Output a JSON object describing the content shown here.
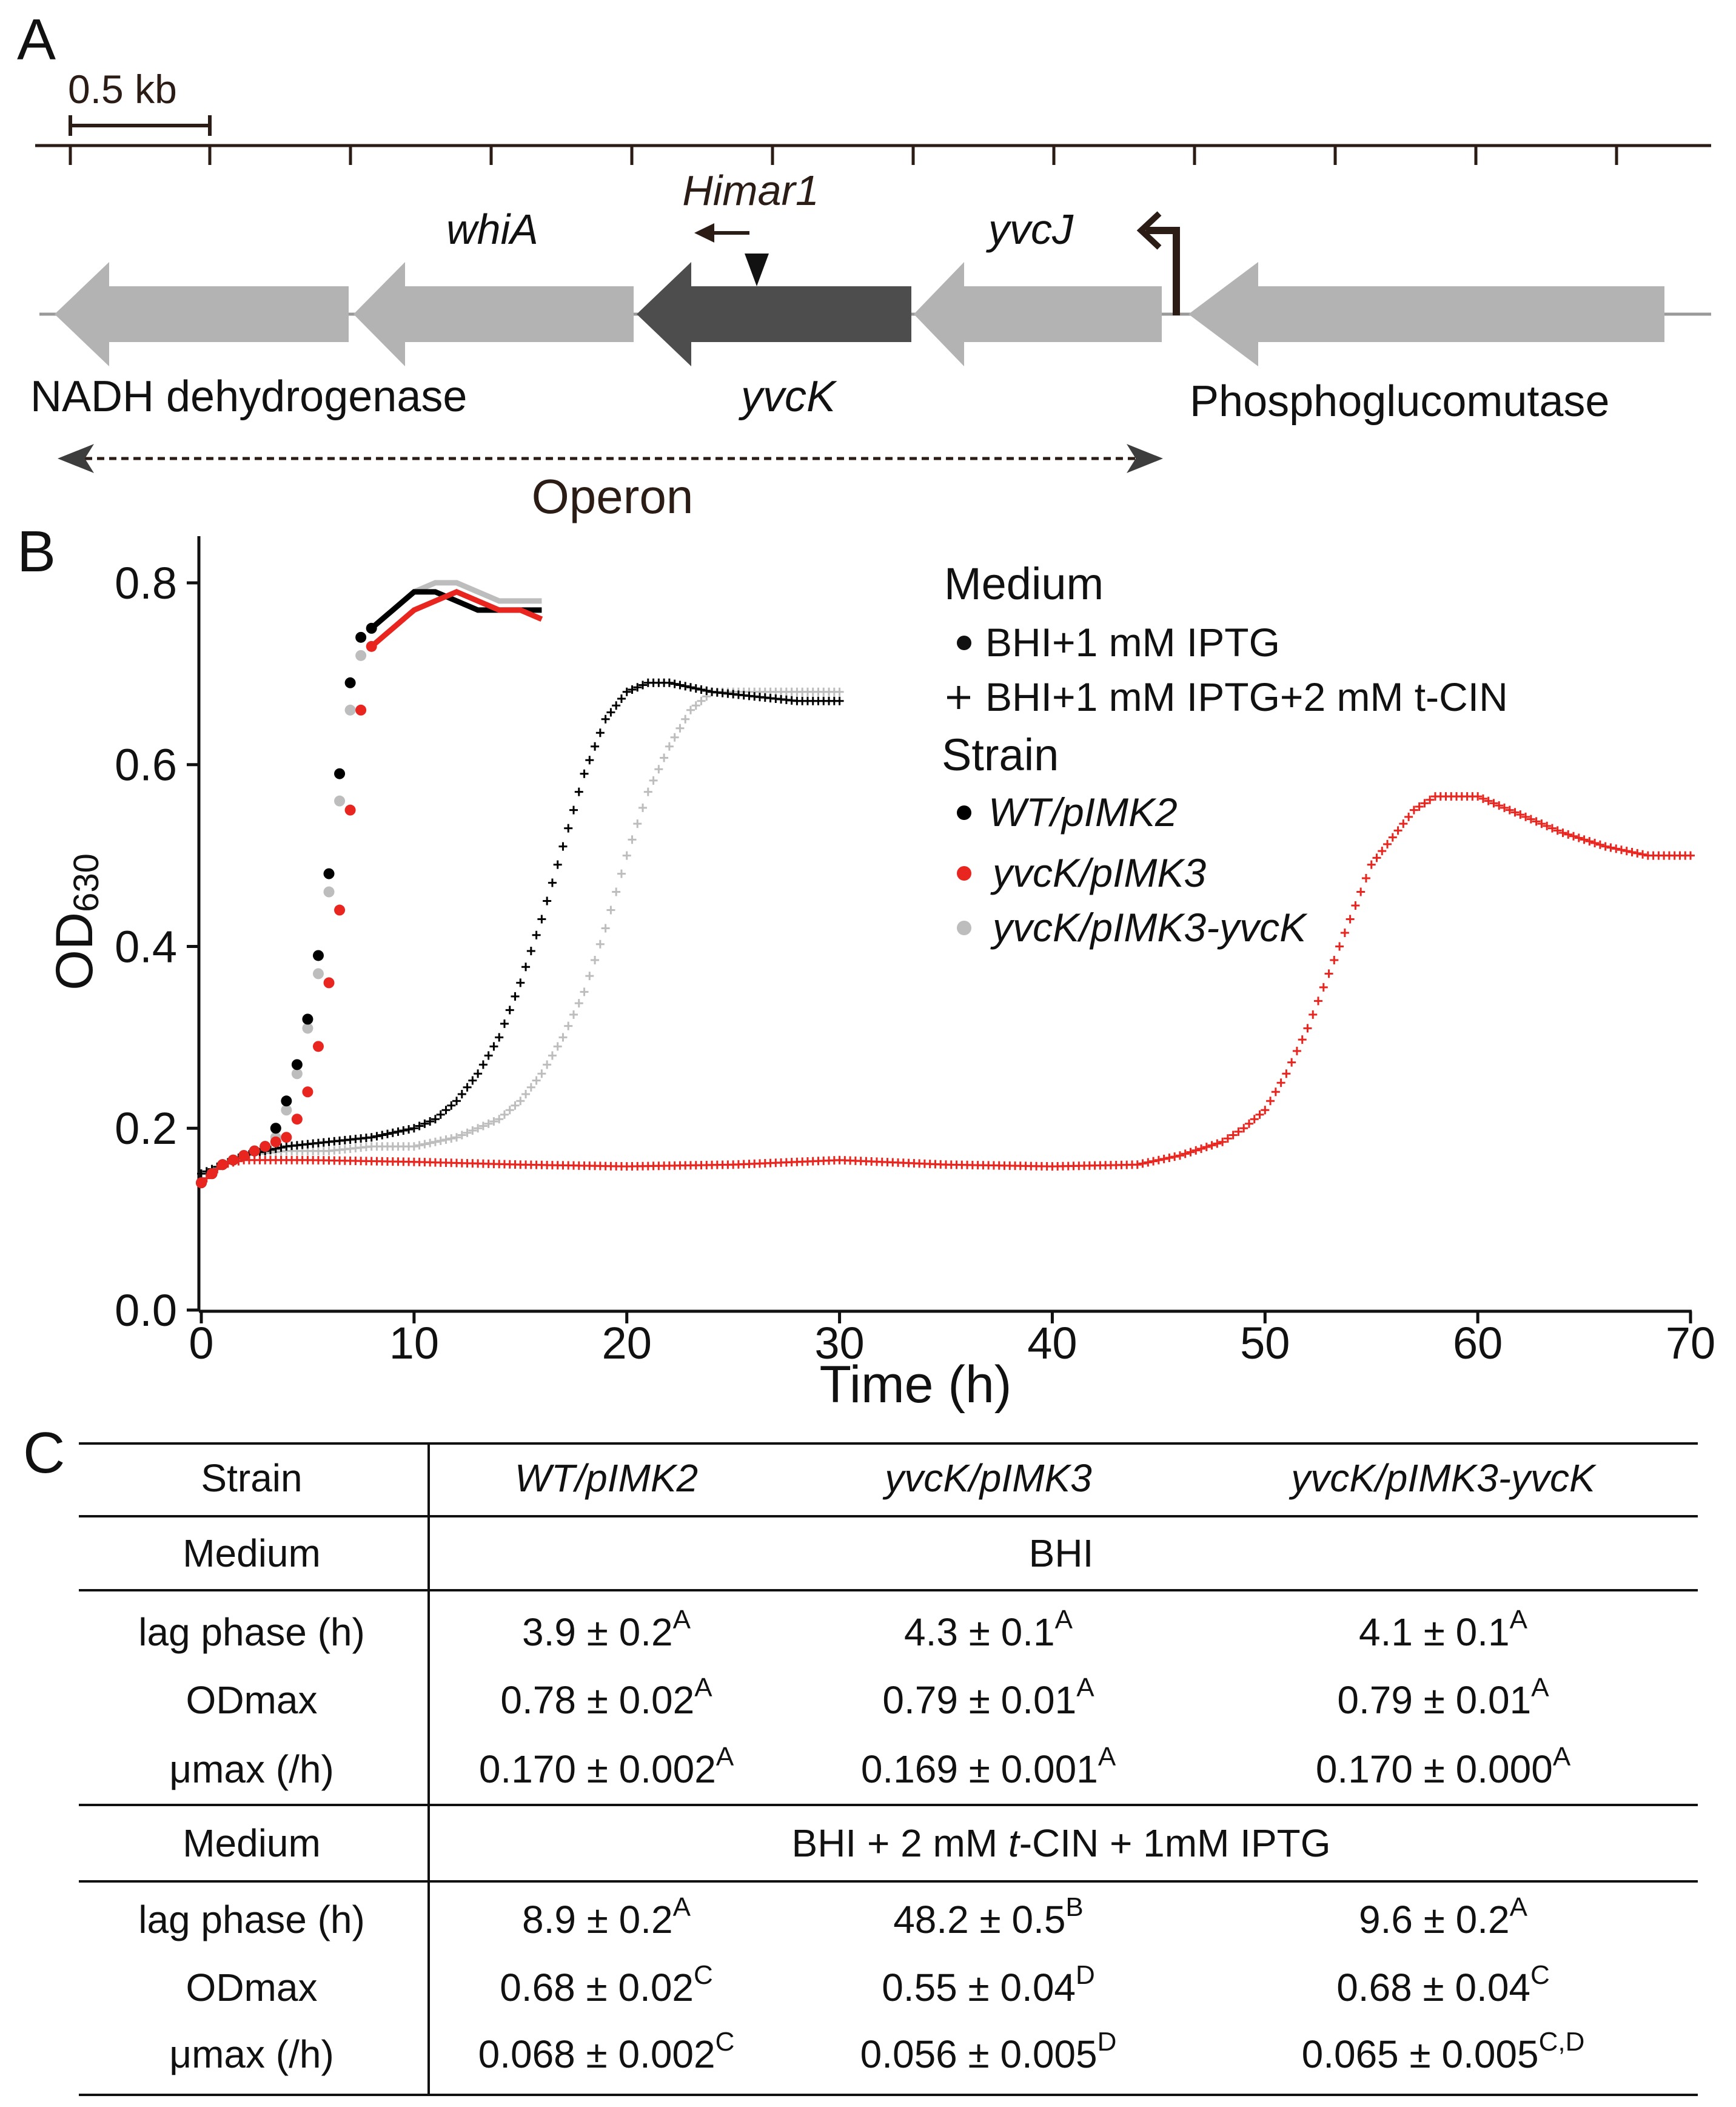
{
  "panel_labels": {
    "a": "A",
    "b": "B",
    "c": "C"
  },
  "panel_a": {
    "scale_bar": "0.5 kb",
    "genes": {
      "whiA": "whiA",
      "yvcJ": "yvcJ",
      "yvcK": "yvcK",
      "nadh": "NADH dehydrogenase",
      "pgm": "Phosphoglucomutase"
    },
    "transposon": "Himar1",
    "operon": "Operon",
    "colors": {
      "gene": "#b3b3b3",
      "target_gene": "#4d4d4d",
      "arrow": "#2b1d16",
      "line": "#2b1d16"
    }
  },
  "chart_data": {
    "type": "scatter",
    "xlabel": "Time (h)",
    "ylabel": "OD",
    "ylabel_sub": "630",
    "xlim": [
      0,
      70
    ],
    "ylim": [
      0,
      0.85
    ],
    "xticks": [
      0,
      10,
      20,
      30,
      40,
      50,
      60,
      70
    ],
    "yticks": [
      0.0,
      0.2,
      0.4,
      0.6,
      0.8
    ],
    "ytick_labels": [
      "0.0",
      "0.2",
      "0.4",
      "0.6",
      "0.8"
    ],
    "legend": {
      "medium_title": "Medium",
      "medium_items": [
        {
          "marker": "dot",
          "label": "BHI+1 mM IPTG"
        },
        {
          "marker": "plus",
          "label": "BHI+1 mM IPTG+2 mM t-CIN"
        }
      ],
      "strain_title": "Strain",
      "strain_items": [
        {
          "color": "#000000",
          "label": "WT/pIMK2"
        },
        {
          "color": "#e8251f",
          "label": "yvcK/pIMK3"
        },
        {
          "color": "#bdbdbd",
          "label": "yvcK/pIMK3-yvcK"
        }
      ]
    },
    "series": [
      {
        "name": "WT/pIMK2",
        "medium": "BHI+1 mM IPTG",
        "marker": "dot",
        "color": "#000000",
        "x": [
          0,
          1,
          2,
          3,
          3.5,
          4,
          4.5,
          5,
          5.5,
          6,
          6.5,
          7,
          7.5,
          8,
          9,
          10,
          11,
          12,
          13,
          14,
          15,
          16
        ],
        "y": [
          0.14,
          0.16,
          0.17,
          0.18,
          0.2,
          0.23,
          0.27,
          0.32,
          0.39,
          0.48,
          0.59,
          0.69,
          0.74,
          0.75,
          0.77,
          0.79,
          0.79,
          0.78,
          0.77,
          0.77,
          0.77,
          0.77
        ]
      },
      {
        "name": "yvcK/pIMK3",
        "medium": "BHI+1 mM IPTG",
        "marker": "dot",
        "color": "#e8251f",
        "x": [
          0,
          1,
          2,
          3,
          4,
          4.5,
          5,
          5.5,
          6,
          6.5,
          7,
          7.5,
          8,
          9,
          10,
          11,
          12,
          13,
          14,
          15,
          16
        ],
        "y": [
          0.14,
          0.16,
          0.17,
          0.18,
          0.19,
          0.21,
          0.24,
          0.29,
          0.36,
          0.44,
          0.55,
          0.66,
          0.73,
          0.75,
          0.77,
          0.78,
          0.79,
          0.78,
          0.77,
          0.77,
          0.76
        ]
      },
      {
        "name": "yvcK/pIMK3-yvcK",
        "medium": "BHI+1 mM IPTG",
        "marker": "dot",
        "color": "#bdbdbd",
        "x": [
          0,
          1,
          2,
          3,
          3.5,
          4,
          4.5,
          5,
          5.5,
          6,
          6.5,
          7,
          7.5,
          8,
          9,
          10,
          11,
          12,
          13,
          14,
          15,
          16
        ],
        "y": [
          0.14,
          0.16,
          0.17,
          0.18,
          0.19,
          0.22,
          0.26,
          0.31,
          0.37,
          0.46,
          0.56,
          0.66,
          0.72,
          0.75,
          0.77,
          0.79,
          0.8,
          0.8,
          0.79,
          0.78,
          0.78,
          0.78
        ]
      },
      {
        "name": "WT/pIMK2",
        "medium": "BHI+1 mM IPTG+2 mM t-CIN",
        "marker": "plus",
        "color": "#000000",
        "x": [
          0,
          2,
          4,
          6,
          8,
          10,
          11,
          12,
          13,
          14,
          15,
          16,
          17,
          18,
          19,
          20,
          21,
          22,
          24,
          26,
          28,
          30
        ],
        "y": [
          0.15,
          0.17,
          0.18,
          0.185,
          0.19,
          0.2,
          0.21,
          0.23,
          0.26,
          0.3,
          0.36,
          0.43,
          0.51,
          0.59,
          0.65,
          0.68,
          0.69,
          0.69,
          0.68,
          0.675,
          0.67,
          0.67
        ]
      },
      {
        "name": "yvcK/pIMK3",
        "medium": "BHI+1 mM IPTG+2 mM t-CIN",
        "marker": "plus",
        "color": "#e8251f",
        "x": [
          0,
          1,
          2,
          5,
          10,
          15,
          20,
          25,
          30,
          35,
          40,
          44,
          46,
          48,
          49,
          50,
          51,
          52,
          53,
          54,
          55,
          56,
          57,
          58,
          60,
          62,
          64,
          66,
          68,
          70
        ],
        "y": [
          0.14,
          0.16,
          0.165,
          0.165,
          0.163,
          0.16,
          0.158,
          0.16,
          0.165,
          0.16,
          0.158,
          0.16,
          0.17,
          0.185,
          0.2,
          0.22,
          0.26,
          0.31,
          0.37,
          0.43,
          0.49,
          0.52,
          0.55,
          0.565,
          0.565,
          0.545,
          0.525,
          0.51,
          0.5,
          0.5
        ]
      },
      {
        "name": "yvcK/pIMK3-yvcK",
        "medium": "BHI+1 mM IPTG+2 mM t-CIN",
        "marker": "plus",
        "color": "#bdbdbd",
        "x": [
          0,
          2,
          4,
          6,
          8,
          10,
          12,
          13,
          14,
          15,
          16,
          17,
          18,
          19,
          20,
          21,
          22,
          23,
          24,
          25,
          26,
          28,
          30
        ],
        "y": [
          0.15,
          0.17,
          0.175,
          0.175,
          0.18,
          0.18,
          0.19,
          0.2,
          0.21,
          0.23,
          0.26,
          0.3,
          0.35,
          0.42,
          0.5,
          0.57,
          0.62,
          0.66,
          0.68,
          0.68,
          0.68,
          0.68,
          0.68
        ]
      }
    ]
  },
  "table": {
    "header": {
      "label": "Strain",
      "col1": "WT/pIMK2",
      "col2": "yvcK/pIMK3",
      "col3": "yvcK/pIMK3-yvcK"
    },
    "medium1": {
      "label": "Medium",
      "value": "BHI"
    },
    "block1": [
      {
        "label": "lag phase (h)",
        "v1": "3.9 ± 0.2",
        "s1": "A",
        "v2": "4.3 ± 0.1",
        "s2": "A",
        "v3": "4.1 ± 0.1",
        "s3": "A"
      },
      {
        "label": "ODmax",
        "v1": "0.78 ± 0.02",
        "s1": "A",
        "v2": "0.79 ± 0.01",
        "s2": "A",
        "v3": "0.79 ± 0.01",
        "s3": "A"
      },
      {
        "label": "μmax (/h)",
        "v1": "0.170 ± 0.002",
        "s1": "A",
        "v2": "0.169 ± 0.001",
        "s2": "A",
        "v3": "0.170 ± 0.000",
        "s3": "A"
      }
    ],
    "medium2": {
      "label": "Medium",
      "pre": "BHI + 2 mM ",
      "ital": "t",
      "post": "-CIN + 1mM IPTG"
    },
    "block2": [
      {
        "label": "lag phase (h)",
        "v1": "8.9 ± 0.2",
        "s1": "A",
        "v2": "48.2 ± 0.5",
        "s2": "B",
        "v3": "9.6 ± 0.2",
        "s3": "A"
      },
      {
        "label": "ODmax",
        "v1": "0.68 ± 0.02",
        "s1": "C",
        "v2": "0.55 ± 0.04",
        "s2": "D",
        "v3": "0.68 ± 0.04",
        "s3": "C"
      },
      {
        "label": "μmax (/h)",
        "v1": "0.068 ± 0.002",
        "s1": "C",
        "v2": "0.056 ± 0.005",
        "s2": "D",
        "v3": "0.065 ± 0.005",
        "s3": "C,D"
      }
    ]
  }
}
